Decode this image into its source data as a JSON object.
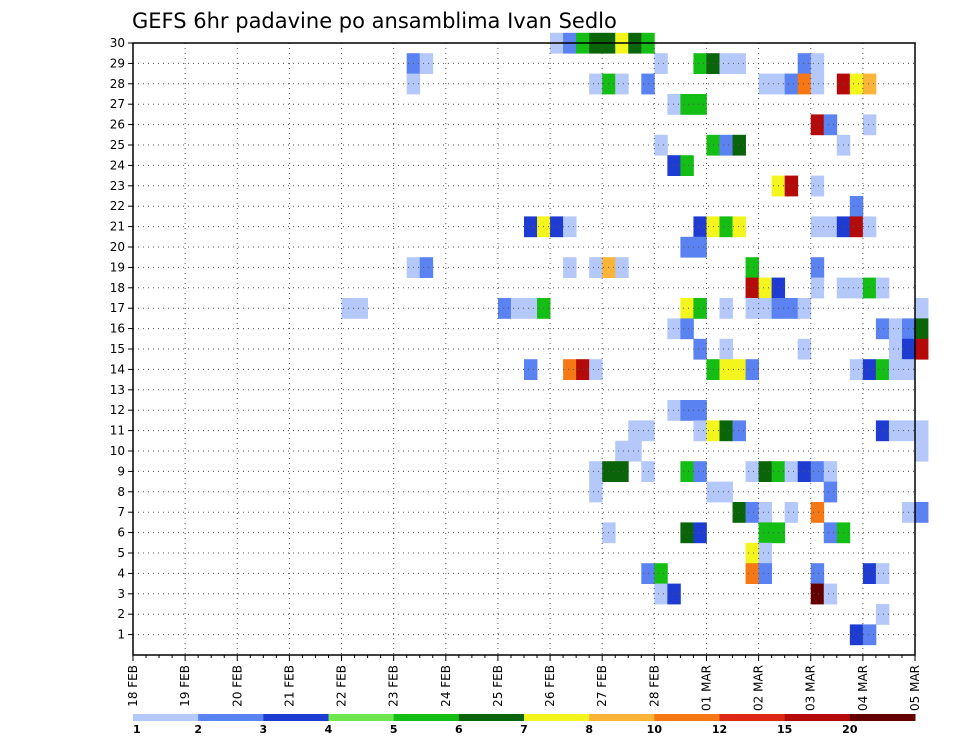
{
  "chart_data": {
    "type": "heatmap",
    "title": "GEFS 6hr padavine po ansamblima Ivan Sedlo",
    "x_tick_labels": [
      "18 FEB",
      "19 FEB",
      "20 FEB",
      "21 FEB",
      "22 FEB",
      "23 FEB",
      "24 FEB",
      "25 FEB",
      "26 FEB",
      "27 FEB",
      "28 FEB",
      "01 MAR",
      "02 MAR",
      "03 MAR",
      "04 MAR",
      "05 MAR"
    ],
    "y_tick_labels": [
      "1",
      "2",
      "3",
      "4",
      "5",
      "6",
      "7",
      "8",
      "9",
      "10",
      "11",
      "12",
      "13",
      "14",
      "15",
      "16",
      "17",
      "18",
      "19",
      "20",
      "21",
      "22",
      "23",
      "24",
      "25",
      "26",
      "27",
      "28",
      "29",
      "30"
    ],
    "y_range": [
      0,
      30
    ],
    "time_steps_per_day": 4,
    "grid": "dotted",
    "colorbar": {
      "labels": [
        "1",
        "2",
        "3",
        "4",
        "5",
        "6",
        "7",
        "8",
        "10",
        "12",
        "15",
        "20"
      ],
      "colors": [
        "#b4c8fa",
        "#5a82f0",
        "#1e3cd2",
        "#6ee650",
        "#14be14",
        "#0a640a",
        "#f5f51e",
        "#fab437",
        "#f57814",
        "#dc2814",
        "#b40a0a",
        "#640000"
      ]
    },
    "cells": [
      [
        "26 FEB 00",
        30,
        1
      ],
      [
        "26 FEB 06",
        30,
        2
      ],
      [
        "26 FEB 12",
        30,
        5
      ],
      [
        "26 FEB 18",
        30,
        6
      ],
      [
        "27 FEB 00",
        30,
        6
      ],
      [
        "27 FEB 06",
        30,
        7
      ],
      [
        "27 FEB 12",
        30,
        6
      ],
      [
        "27 FEB 18",
        30,
        5
      ],
      [
        "23 FEB 06",
        29,
        2
      ],
      [
        "23 FEB 12",
        29,
        1
      ],
      [
        "28 FEB 00",
        29,
        1
      ],
      [
        "28 FEB 18",
        29,
        5
      ],
      [
        "01 MAR 00",
        29,
        6
      ],
      [
        "01 MAR 06",
        29,
        1
      ],
      [
        "01 MAR 12",
        29,
        1
      ],
      [
        "02 MAR 18",
        29,
        2
      ],
      [
        "03 MAR 00",
        29,
        1
      ],
      [
        "23 FEB 06",
        28,
        1
      ],
      [
        "26 FEB 18",
        28,
        1
      ],
      [
        "27 FEB 00",
        28,
        5
      ],
      [
        "27 FEB 06",
        28,
        1
      ],
      [
        "27 FEB 18",
        28,
        2
      ],
      [
        "02 MAR 00",
        28,
        1
      ],
      [
        "02 MAR 06",
        28,
        1
      ],
      [
        "02 MAR 12",
        28,
        2
      ],
      [
        "02 MAR 18",
        28,
        10
      ],
      [
        "03 MAR 00",
        28,
        1
      ],
      [
        "03 MAR 12",
        28,
        15
      ],
      [
        "03 MAR 18",
        28,
        7
      ],
      [
        "04 MAR 00",
        28,
        8
      ],
      [
        "28 FEB 06",
        27,
        1
      ],
      [
        "28 FEB 12",
        27,
        5
      ],
      [
        "28 FEB 18",
        27,
        5
      ],
      [
        "03 MAR 00",
        26,
        15
      ],
      [
        "03 MAR 06",
        26,
        2
      ],
      [
        "04 MAR 00",
        26,
        1
      ],
      [
        "28 FEB 00",
        25,
        1
      ],
      [
        "01 MAR 00",
        25,
        5
      ],
      [
        "01 MAR 06",
        25,
        2
      ],
      [
        "01 MAR 12",
        25,
        6
      ],
      [
        "03 MAR 12",
        25,
        1
      ],
      [
        "28 FEB 06",
        24,
        3
      ],
      [
        "28 FEB 12",
        24,
        5
      ],
      [
        "02 MAR 06",
        23,
        7
      ],
      [
        "02 MAR 12",
        23,
        15
      ],
      [
        "03 MAR 00",
        23,
        1
      ],
      [
        "03 MAR 18",
        22,
        2
      ],
      [
        "25 FEB 12",
        21,
        3
      ],
      [
        "25 FEB 18",
        21,
        7
      ],
      [
        "26 FEB 00",
        21,
        3
      ],
      [
        "26 FEB 06",
        21,
        1
      ],
      [
        "28 FEB 18",
        21,
        3
      ],
      [
        "01 MAR 00",
        21,
        7
      ],
      [
        "01 MAR 06",
        21,
        5
      ],
      [
        "01 MAR 12",
        21,
        7
      ],
      [
        "03 MAR 00",
        21,
        1
      ],
      [
        "03 MAR 06",
        21,
        1
      ],
      [
        "03 MAR 12",
        21,
        3
      ],
      [
        "03 MAR 18",
        21,
        15
      ],
      [
        "04 MAR 00",
        21,
        1
      ],
      [
        "28 FEB 12",
        20,
        2
      ],
      [
        "28 FEB 18",
        20,
        2
      ],
      [
        "23 FEB 06",
        19,
        1
      ],
      [
        "23 FEB 12",
        19,
        2
      ],
      [
        "26 FEB 06",
        19,
        1
      ],
      [
        "26 FEB 18",
        19,
        1
      ],
      [
        "27 FEB 00",
        19,
        8
      ],
      [
        "27 FEB 06",
        19,
        1
      ],
      [
        "01 MAR 18",
        19,
        5
      ],
      [
        "03 MAR 00",
        19,
        2
      ],
      [
        "01 MAR 18",
        18,
        15
      ],
      [
        "02 MAR 00",
        18,
        7
      ],
      [
        "02 MAR 06",
        18,
        3
      ],
      [
        "03 MAR 00",
        18,
        1
      ],
      [
        "03 MAR 12",
        18,
        1
      ],
      [
        "03 MAR 18",
        18,
        1
      ],
      [
        "04 MAR 00",
        18,
        5
      ],
      [
        "04 MAR 06",
        18,
        1
      ],
      [
        "22 FEB 00",
        17,
        1
      ],
      [
        "22 FEB 06",
        17,
        1
      ],
      [
        "25 FEB 00",
        17,
        2
      ],
      [
        "25 FEB 06",
        17,
        1
      ],
      [
        "25 FEB 12",
        17,
        1
      ],
      [
        "25 FEB 18",
        17,
        5
      ],
      [
        "28 FEB 12",
        17,
        7
      ],
      [
        "28 FEB 18",
        17,
        5
      ],
      [
        "01 MAR 06",
        17,
        1
      ],
      [
        "01 MAR 18",
        17,
        1
      ],
      [
        "02 MAR 00",
        17,
        1
      ],
      [
        "02 MAR 06",
        17,
        2
      ],
      [
        "02 MAR 12",
        17,
        2
      ],
      [
        "02 MAR 18",
        17,
        1
      ],
      [
        "05 MAR 00",
        17,
        1
      ],
      [
        "28 FEB 06",
        16,
        1
      ],
      [
        "28 FEB 12",
        16,
        2
      ],
      [
        "04 MAR 06",
        16,
        2
      ],
      [
        "04 MAR 12",
        16,
        1
      ],
      [
        "04 MAR 18",
        16,
        2
      ],
      [
        "05 MAR 00",
        16,
        6
      ],
      [
        "28 FEB 18",
        15,
        2
      ],
      [
        "01 MAR 06",
        15,
        1
      ],
      [
        "02 MAR 18",
        15,
        1
      ],
      [
        "04 MAR 12",
        15,
        1
      ],
      [
        "04 MAR 18",
        15,
        3
      ],
      [
        "05 MAR 00",
        15,
        15
      ],
      [
        "25 FEB 12",
        14,
        2
      ],
      [
        "26 FEB 06",
        14,
        10
      ],
      [
        "26 FEB 12",
        14,
        15
      ],
      [
        "26 FEB 18",
        14,
        1
      ],
      [
        "01 MAR 00",
        14,
        5
      ],
      [
        "01 MAR 06",
        14,
        7
      ],
      [
        "01 MAR 12",
        14,
        7
      ],
      [
        "01 MAR 18",
        14,
        2
      ],
      [
        "03 MAR 18",
        14,
        1
      ],
      [
        "04 MAR 00",
        14,
        3
      ],
      [
        "04 MAR 06",
        14,
        5
      ],
      [
        "04 MAR 12",
        14,
        1
      ],
      [
        "04 MAR 18",
        14,
        1
      ],
      [
        "28 FEB 06",
        12,
        1
      ],
      [
        "28 FEB 12",
        12,
        2
      ],
      [
        "28 FEB 18",
        12,
        2
      ],
      [
        "27 FEB 12",
        11,
        1
      ],
      [
        "27 FEB 18",
        11,
        1
      ],
      [
        "28 FEB 18",
        11,
        1
      ],
      [
        "01 MAR 00",
        11,
        7
      ],
      [
        "01 MAR 06",
        11,
        6
      ],
      [
        "01 MAR 12",
        11,
        2
      ],
      [
        "04 MAR 06",
        11,
        3
      ],
      [
        "04 MAR 12",
        11,
        1
      ],
      [
        "04 MAR 18",
        11,
        1
      ],
      [
        "05 MAR 00",
        11,
        1
      ],
      [
        "27 FEB 06",
        10,
        1
      ],
      [
        "27 FEB 12",
        10,
        1
      ],
      [
        "05 MAR 00",
        10,
        1
      ],
      [
        "26 FEB 18",
        9,
        1
      ],
      [
        "27 FEB 00",
        9,
        6
      ],
      [
        "27 FEB 06",
        9,
        6
      ],
      [
        "27 FEB 18",
        9,
        1
      ],
      [
        "28 FEB 12",
        9,
        5
      ],
      [
        "28 FEB 18",
        9,
        2
      ],
      [
        "01 MAR 18",
        9,
        1
      ],
      [
        "02 MAR 00",
        9,
        6
      ],
      [
        "02 MAR 06",
        9,
        5
      ],
      [
        "02 MAR 12",
        9,
        1
      ],
      [
        "02 MAR 18",
        9,
        3
      ],
      [
        "03 MAR 00",
        9,
        2
      ],
      [
        "03 MAR 06",
        9,
        1
      ],
      [
        "26 FEB 18",
        8,
        1
      ],
      [
        "01 MAR 00",
        8,
        1
      ],
      [
        "01 MAR 06",
        8,
        1
      ],
      [
        "03 MAR 06",
        8,
        2
      ],
      [
        "01 MAR 12",
        7,
        6
      ],
      [
        "01 MAR 18",
        7,
        2
      ],
      [
        "02 MAR 00",
        7,
        1
      ],
      [
        "02 MAR 12",
        7,
        1
      ],
      [
        "03 MAR 00",
        7,
        10
      ],
      [
        "04 MAR 18",
        7,
        1
      ],
      [
        "05 MAR 00",
        7,
        2
      ],
      [
        "27 FEB 00",
        6,
        1
      ],
      [
        "28 FEB 12",
        6,
        6
      ],
      [
        "28 FEB 18",
        6,
        3
      ],
      [
        "02 MAR 00",
        6,
        5
      ],
      [
        "02 MAR 06",
        6,
        5
      ],
      [
        "03 MAR 06",
        6,
        2
      ],
      [
        "03 MAR 12",
        6,
        5
      ],
      [
        "01 MAR 18",
        5,
        7
      ],
      [
        "02 MAR 00",
        5,
        1
      ],
      [
        "27 FEB 18",
        4,
        2
      ],
      [
        "28 FEB 00",
        4,
        5
      ],
      [
        "01 MAR 18",
        4,
        10
      ],
      [
        "02 MAR 00",
        4,
        2
      ],
      [
        "03 MAR 00",
        4,
        2
      ],
      [
        "04 MAR 00",
        4,
        3
      ],
      [
        "04 MAR 06",
        4,
        1
      ],
      [
        "28 FEB 00",
        3,
        1
      ],
      [
        "28 FEB 06",
        3,
        3
      ],
      [
        "03 MAR 00",
        3,
        20
      ],
      [
        "03 MAR 06",
        3,
        1
      ],
      [
        "04 MAR 06",
        2,
        1
      ],
      [
        "03 MAR 18",
        1,
        3
      ],
      [
        "04 MAR 00",
        1,
        2
      ]
    ]
  }
}
